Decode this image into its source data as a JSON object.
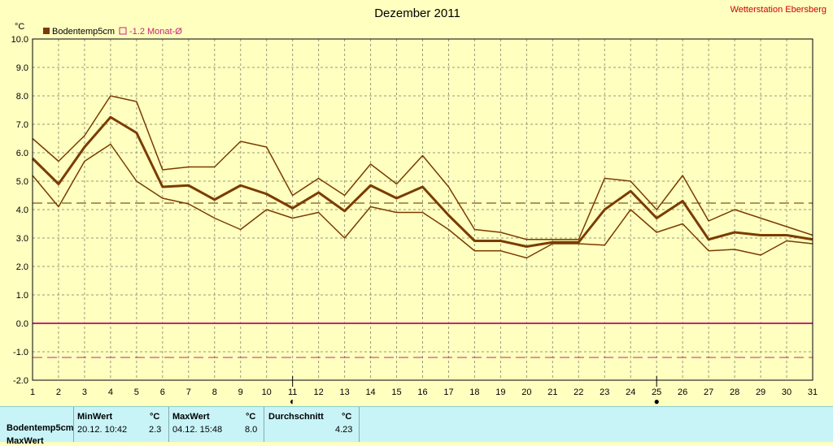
{
  "header": {
    "title": "Dezember 2011",
    "station": "Wetterstation Ebersberg",
    "unit": "°C"
  },
  "legend": [
    {
      "label": "Bodentemp5cm",
      "color": "#7a3c00",
      "marker": "filled"
    },
    {
      "label": "-1.2 Monat-Ø",
      "color": "#d0207a",
      "marker": "hollow"
    }
  ],
  "chart_data": {
    "type": "line",
    "x": [
      1,
      2,
      3,
      4,
      5,
      6,
      7,
      8,
      9,
      10,
      11,
      12,
      13,
      14,
      15,
      16,
      17,
      18,
      19,
      20,
      21,
      22,
      23,
      24,
      25,
      26,
      27,
      28,
      29,
      30,
      31
    ],
    "xlim": [
      1,
      31
    ],
    "ylim": [
      -2.0,
      10.0
    ],
    "yticks": [
      "10.0",
      "9.0",
      "8.0",
      "7.0",
      "6.0",
      "5.0",
      "4.0",
      "3.0",
      "2.0",
      "1.0",
      "0.0",
      "-1.0",
      "-2.0"
    ],
    "grid": true,
    "series": [
      {
        "name": "Bodentemp5cm",
        "values": [
          5.8,
          4.9,
          6.2,
          7.25,
          6.7,
          4.8,
          4.85,
          4.35,
          4.85,
          4.55,
          4.05,
          4.6,
          3.95,
          4.85,
          4.4,
          4.8,
          3.8,
          2.9,
          2.9,
          2.7,
          2.85,
          2.85,
          4.0,
          4.65,
          3.7,
          4.3,
          2.95,
          3.2,
          3.1,
          3.1,
          2.95
        ],
        "color": "#7a3c00",
        "width": 3
      },
      {
        "values": [
          6.5,
          5.7,
          6.6,
          8.0,
          7.8,
          5.4,
          5.5,
          5.5,
          6.4,
          6.2,
          4.5,
          5.1,
          4.5,
          5.6,
          4.9,
          5.9,
          4.8,
          3.3,
          3.2,
          2.95,
          2.95,
          2.95,
          5.1,
          5.0,
          4.0,
          5.2,
          3.6,
          4.0,
          3.7,
          3.4,
          3.1
        ],
        "color": "#7a3c00",
        "width": 1.5
      },
      {
        "values": [
          5.2,
          4.1,
          5.7,
          6.3,
          5.0,
          4.4,
          4.2,
          3.7,
          3.3,
          4.0,
          3.7,
          3.9,
          3.0,
          4.1,
          3.9,
          3.9,
          3.3,
          2.55,
          2.55,
          2.3,
          2.8,
          2.8,
          2.75,
          4.0,
          3.2,
          3.5,
          2.55,
          2.6,
          2.4,
          2.9,
          2.8
        ],
        "color": "#7a3c00",
        "width": 1.5
      }
    ],
    "reference_lines": [
      {
        "y": 4.23,
        "color": "#5a2e00",
        "style": "dashed"
      },
      {
        "y": 0.0,
        "color": "#d0207a",
        "style": "solid"
      },
      {
        "y": -1.2,
        "color": "#d0207a",
        "style": "dashed"
      }
    ],
    "day_markers": [
      {
        "x": 11,
        "symbol": "◐"
      },
      {
        "x": 25,
        "symbol": "●"
      }
    ]
  },
  "stats": {
    "row_label": "Bodentemp5cm",
    "row2_label": "MaxWert",
    "min": {
      "title": "MinWert",
      "unit": "°C",
      "when": "20.12.  10:42",
      "value": "2.3"
    },
    "max": {
      "title": "MaxWert",
      "unit": "°C",
      "when": "04.12.  15:48",
      "value": "8.0"
    },
    "avg": {
      "title": "Durchschnitt",
      "unit": "°C",
      "value": "4.23"
    }
  }
}
